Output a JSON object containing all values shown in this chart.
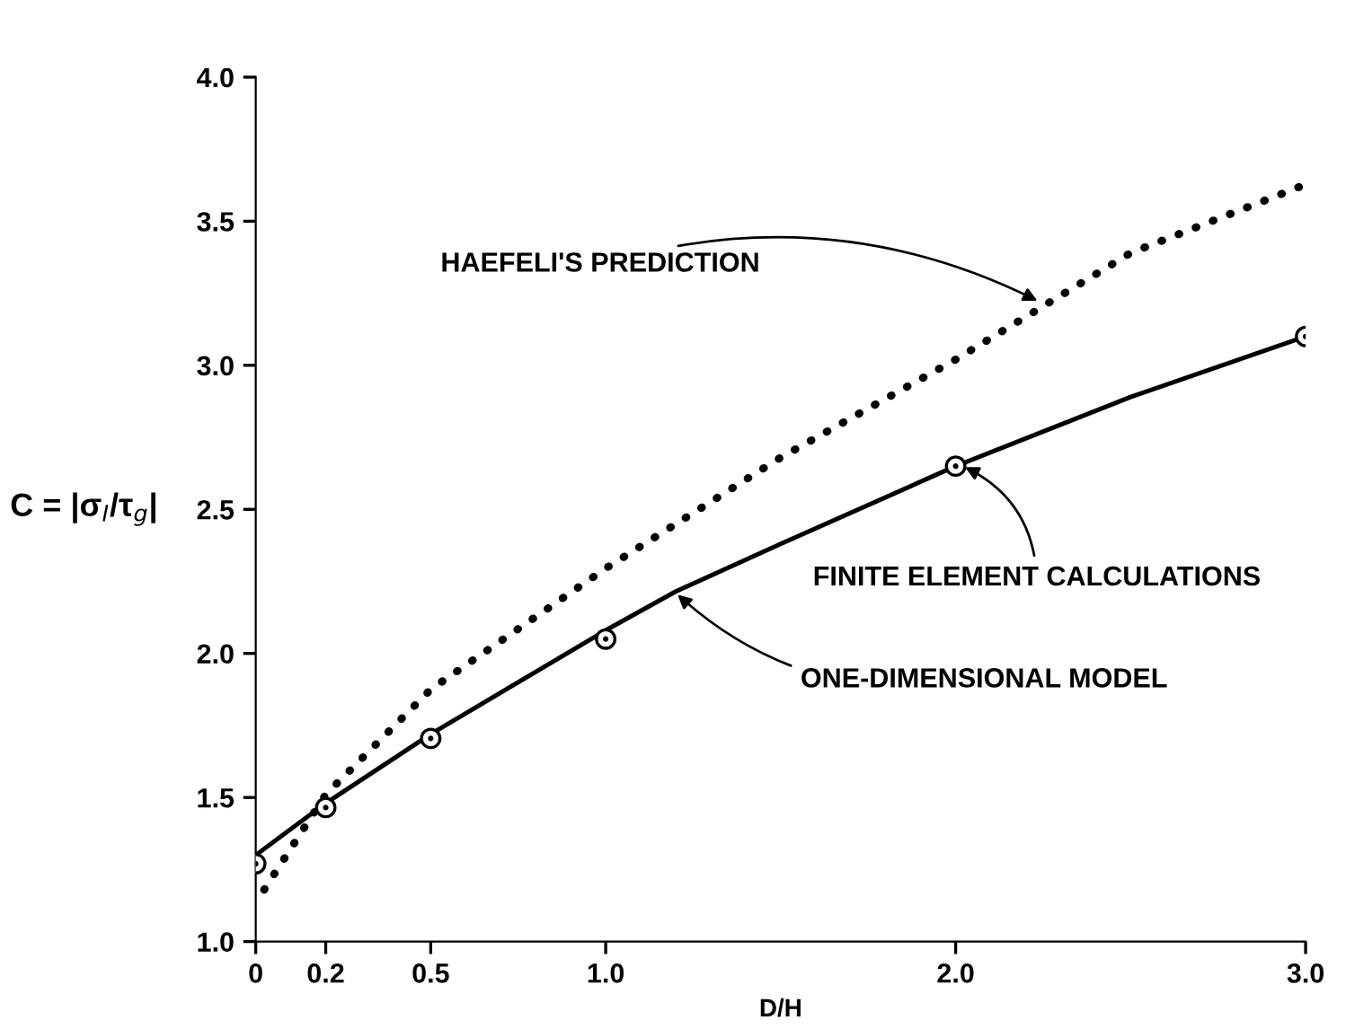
{
  "chart_data": {
    "type": "line",
    "xlabel": "D/H",
    "ylabel": "C = |σ$_{I}$/τ$_{g}$|",
    "xlim": [
      0,
      3.0
    ],
    "ylim": [
      1.0,
      4.0
    ],
    "xticks": [
      0,
      0.2,
      0.5,
      {
        "value": 1.0,
        "label": "1.0"
      },
      {
        "value": 2.0,
        "label": "2.0"
      },
      {
        "value": 3.0,
        "label": "3.0"
      }
    ],
    "yticks": [
      {
        "value": 1.0,
        "label": "1.0"
      },
      1.5,
      {
        "value": 2.0,
        "label": "2.0"
      },
      2.5,
      {
        "value": 3.0,
        "label": "3.0"
      },
      3.5,
      {
        "value": 4.0,
        "label": "4.0"
      }
    ],
    "grid": false,
    "legend": false,
    "series": [
      {
        "color": "#000000",
        "line_style": "dotted",
        "marker": "none",
        "x": [
          0.024,
          0.2,
          0.5,
          1.0,
          1.5,
          2.0,
          2.5,
          2.984
        ],
        "values": [
          1.18,
          1.51,
          1.875,
          2.295,
          2.68,
          3.02,
          3.39,
          3.62
        ]
      },
      {
        "color": "#000000",
        "line_style": "solid",
        "marker": "none",
        "x": [
          0,
          0.2,
          0.5,
          1.0,
          1.2,
          1.5,
          2.0,
          2.5,
          3.0
        ],
        "values": [
          1.3,
          1.48,
          1.72,
          2.08,
          2.215,
          2.38,
          2.65,
          2.89,
          3.1
        ]
      },
      {
        "type": "scatter",
        "color": "#000000",
        "marker": "circle",
        "x": [
          0,
          0.2,
          0.5,
          1.0,
          2.0,
          3.0
        ],
        "values": [
          1.27,
          1.465,
          1.705,
          2.05,
          2.65,
          3.1
        ]
      }
    ],
    "annotations": [
      {
        "text": "HAEFELI'S PREDICTION",
        "x": 2.24,
        "y": 3.22
      },
      {
        "text": "FINITE ELEMENT CALCULATIONS",
        "x": 2.02,
        "y": 2.65
      },
      {
        "text": "ONE-DIMENSIONAL MODEL",
        "x": 1.2,
        "y": 2.21
      }
    ]
  }
}
